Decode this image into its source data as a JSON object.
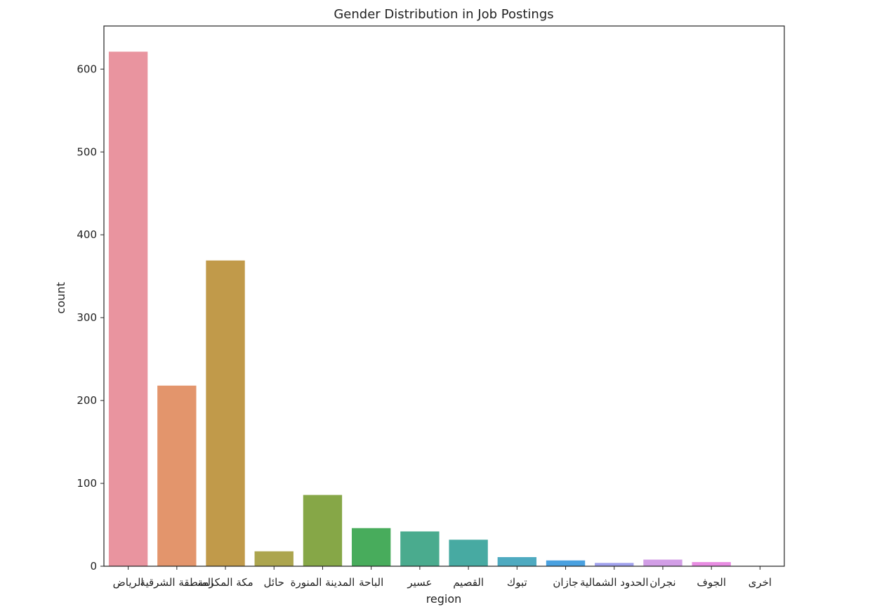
{
  "chart_data": {
    "type": "bar",
    "title": "Gender Distribution in Job Postings",
    "xlabel": "region",
    "ylabel": "count",
    "ylim": [
      0,
      652
    ],
    "yticks": [
      0,
      100,
      200,
      300,
      400,
      500,
      600
    ],
    "grid": false,
    "categories": [
      "الرياض",
      "المنطقة الشرقية",
      "مكة المكرمة",
      "حائل",
      "المدينة المنورة",
      "الباحة",
      "عسير",
      "القصيم",
      "تبوك",
      "جازان",
      "الحدود الشمالية",
      "نجران",
      "الجوف",
      "اخرى"
    ],
    "values": [
      621,
      218,
      369,
      18,
      86,
      46,
      42,
      32,
      11,
      7,
      4,
      8,
      5,
      0
    ],
    "colors": [
      "#e9949f",
      "#e3956c",
      "#c19a4a",
      "#aca54e",
      "#86a747",
      "#48ac5c",
      "#4aab8e",
      "#47aaa2",
      "#4eaac0",
      "#4aa1e0",
      "#a1a2ee",
      "#d29ee6",
      "#e88ce2",
      "#ee8fbc"
    ]
  }
}
